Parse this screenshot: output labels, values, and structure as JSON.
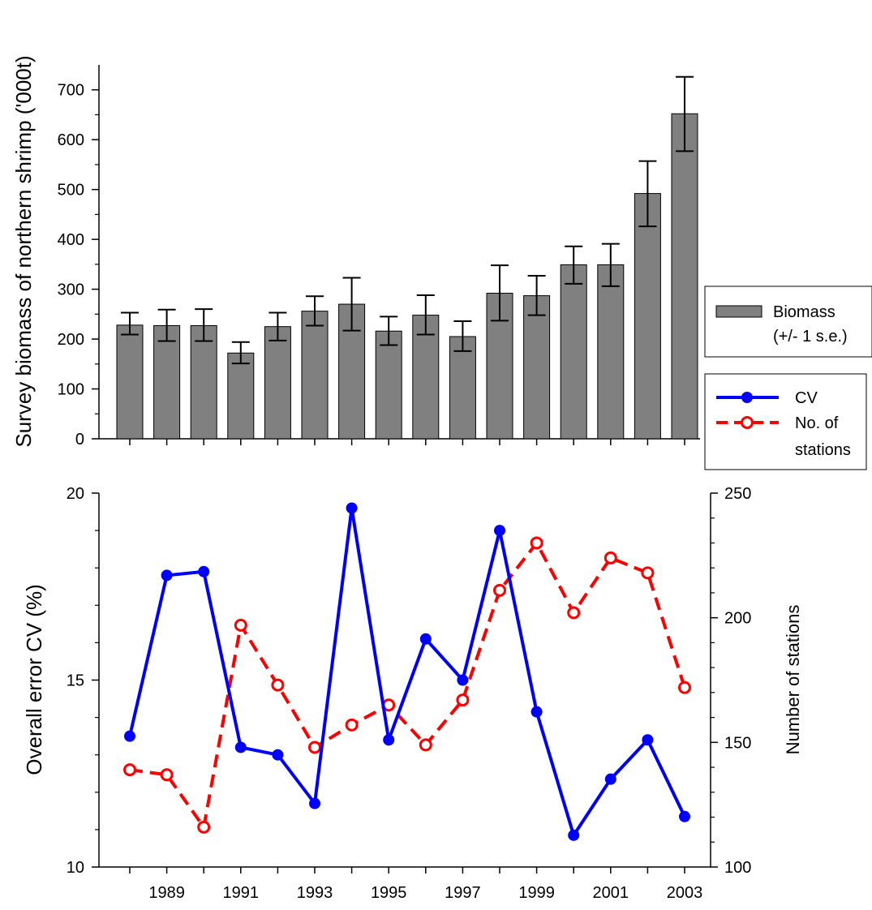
{
  "chart_data": [
    {
      "type": "bar",
      "ylabel": "Survey biomass of northern shrimp ('000t)",
      "ylim": [
        0,
        750
      ],
      "yticks": [
        0,
        100,
        200,
        300,
        400,
        500,
        600,
        700
      ],
      "years": [
        1988,
        1989,
        1990,
        1991,
        1992,
        1993,
        1994,
        1995,
        1996,
        1997,
        1998,
        1999,
        2000,
        2001,
        2002,
        2003
      ],
      "series": [
        {
          "name": "Biomass (+/- 1 s.e.)",
          "color": "#808080",
          "values": [
            228,
            227,
            227,
            172,
            225,
            256,
            270,
            216,
            248,
            205,
            292,
            287,
            349,
            349,
            492,
            652
          ],
          "se_upper": [
            253,
            259,
            260,
            194,
            253,
            286,
            323,
            245,
            288,
            236,
            348,
            327,
            386,
            391,
            557,
            726
          ],
          "se_lower": [
            209,
            196,
            196,
            151,
            197,
            227,
            217,
            188,
            209,
            176,
            237,
            248,
            311,
            306,
            426,
            577
          ]
        }
      ],
      "legend": {
        "label_line1": "Biomass",
        "label_line2": "(+/- 1 s.e.)"
      }
    },
    {
      "type": "line",
      "ylabel": "Overall error CV (%)",
      "ylabel_right": "Number of stations",
      "ylim": [
        10,
        20
      ],
      "yticks": [
        10,
        15,
        20
      ],
      "ylim_right": [
        100,
        250
      ],
      "yticks_right": [
        100,
        150,
        200,
        250
      ],
      "x": [
        1988,
        1989,
        1990,
        1991,
        1992,
        1993,
        1994,
        1995,
        1996,
        1997,
        1998,
        1999,
        2000,
        2001,
        2002,
        2003
      ],
      "xtick_labels": [
        "1989",
        "1991",
        "1993",
        "1995",
        "1997",
        "1999",
        "2001",
        "2003"
      ],
      "series": [
        {
          "name": "CV",
          "axis": "left",
          "color": "#0000ff",
          "marker": "filled-circle",
          "line": "solid",
          "values": [
            13.5,
            17.8,
            17.9,
            13.2,
            13.0,
            11.7,
            19.6,
            13.4,
            16.1,
            15.0,
            19.0,
            14.15,
            10.85,
            12.35,
            13.4,
            11.35
          ]
        },
        {
          "name": "No. of stations",
          "axis": "right",
          "color": "#ff0000",
          "marker": "open-circle",
          "line": "dashed",
          "values": [
            139,
            137,
            116,
            197,
            173,
            148,
            157,
            165,
            149,
            167,
            211,
            230,
            202,
            224,
            218,
            172
          ]
        }
      ],
      "legend": {
        "cv": "CV",
        "stations_line1": "No. of",
        "stations_line2": "stations"
      }
    }
  ]
}
